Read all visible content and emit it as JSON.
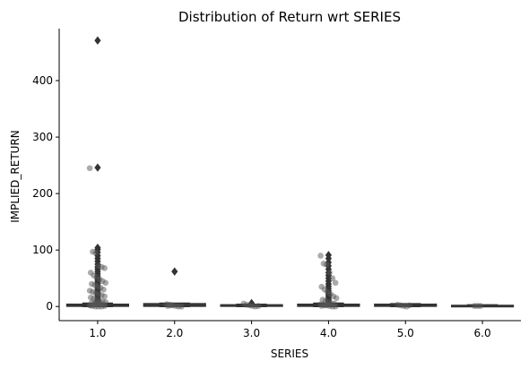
{
  "chart_data": {
    "type": "box",
    "title": "Distribution of Return wrt SERIES",
    "xlabel": "SERIES",
    "ylabel": "IMPLIED_RETURN",
    "categories": [
      "1.0",
      "2.0",
      "3.0",
      "4.0",
      "5.0",
      "6.0"
    ],
    "ylim": [
      -25,
      492
    ],
    "yticks": [
      0,
      100,
      200,
      300,
      400
    ],
    "ytick_labels": [
      "0",
      "100",
      "200",
      "300",
      "400"
    ],
    "grid": false,
    "box_color": "#333333",
    "outlier_color": "#333333",
    "strip_color": "#555555",
    "boxes": [
      {
        "category": "1.0",
        "q1": 0.5,
        "median": 2,
        "q3": 4,
        "whisker_low": 0,
        "whisker_high": 6,
        "outliers": [
          471,
          246,
          104,
          101,
          96,
          90,
          85,
          80,
          75,
          70,
          66,
          62,
          58,
          54,
          50,
          47,
          44,
          41,
          38,
          35,
          32,
          29,
          26,
          23,
          20,
          17,
          14,
          11,
          9,
          7
        ]
      },
      {
        "category": "2.0",
        "q1": 0.5,
        "median": 2,
        "q3": 5,
        "whisker_low": 0,
        "whisker_high": 6,
        "outliers": [
          62
        ]
      },
      {
        "category": "3.0",
        "q1": 0.5,
        "median": 1.5,
        "q3": 3,
        "whisker_low": 0,
        "whisker_high": 4,
        "outliers": [
          6
        ]
      },
      {
        "category": "4.0",
        "q1": 0.5,
        "median": 2,
        "q3": 4,
        "whisker_low": 0,
        "whisker_high": 6,
        "outliers": [
          91,
          85,
          78,
          72,
          66,
          60,
          55,
          50,
          45,
          40,
          36,
          32,
          28,
          24,
          21,
          18,
          15,
          12,
          10,
          8
        ]
      },
      {
        "category": "5.0",
        "q1": 0.5,
        "median": 2,
        "q3": 4,
        "whisker_low": 0,
        "whisker_high": 5,
        "outliers": []
      },
      {
        "category": "6.0",
        "q1": 0.3,
        "median": 1,
        "q3": 2,
        "whisker_low": 0,
        "whisker_high": 3,
        "outliers": []
      }
    ],
    "strip_points": [
      {
        "category": "1.0",
        "values": [
          245,
          97,
          95,
          72,
          70,
          68,
          60,
          55,
          52,
          48,
          45,
          42,
          40,
          38,
          36,
          33,
          30,
          28,
          26,
          24,
          22,
          20,
          18,
          16,
          14,
          12,
          10,
          9,
          8,
          7,
          6,
          5,
          4,
          3,
          2,
          1,
          0,
          0,
          0,
          1,
          2,
          3,
          4,
          5
        ]
      },
      {
        "category": "2.0",
        "values": [
          4,
          3,
          2,
          1,
          0,
          0,
          1,
          2
        ]
      },
      {
        "category": "3.0",
        "values": [
          5,
          3,
          2,
          1,
          0,
          1
        ]
      },
      {
        "category": "4.0",
        "values": [
          90,
          76,
          74,
          60,
          50,
          42,
          35,
          30,
          26,
          22,
          18,
          15,
          12,
          10,
          8,
          6,
          5,
          4,
          3,
          2,
          1,
          0,
          0,
          1,
          2,
          3
        ]
      },
      {
        "category": "5.0",
        "values": [
          3,
          2,
          1,
          0,
          2
        ]
      },
      {
        "category": "6.0",
        "values": [
          1,
          1,
          1
        ]
      }
    ]
  }
}
